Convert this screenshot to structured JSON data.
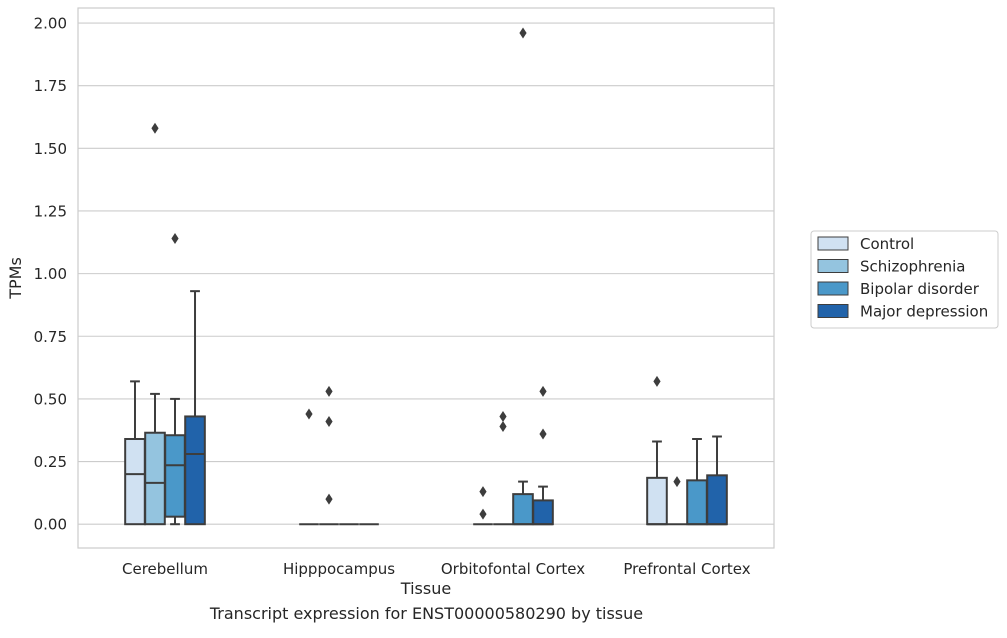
{
  "chart_data": {
    "type": "box",
    "title": "",
    "caption": "Transcript expression for ENST00000580290 by tissue",
    "xlabel": "Tissue",
    "ylabel": "TPMs",
    "categories": [
      "Cerebellum",
      "Hipppocampus",
      "Orbitofontal Cortex",
      "Prefrontal Cortex"
    ],
    "ylim": [
      -0.095,
      2.06
    ],
    "yticks": [
      "0.00",
      "0.25",
      "0.50",
      "0.75",
      "1.00",
      "1.25",
      "1.50",
      "1.75",
      "2.00"
    ],
    "grid": true,
    "legend_position": "right",
    "series": [
      {
        "name": "Control",
        "color": "#d0e1f2",
        "boxes": [
          {
            "q1": 0.0,
            "median": 0.2,
            "q3": 0.34,
            "whislo": 0.0,
            "whishi": 0.57,
            "fliers": []
          },
          {
            "q1": 0.0,
            "median": 0.0,
            "q3": 0.0,
            "whislo": 0.0,
            "whishi": 0.0,
            "fliers": [
              0.44
            ]
          },
          {
            "q1": 0.0,
            "median": 0.0,
            "q3": 0.0,
            "whislo": 0.0,
            "whishi": 0.0,
            "fliers": [
              0.04,
              0.13
            ]
          },
          {
            "q1": 0.0,
            "median": 0.0,
            "q3": 0.185,
            "whislo": 0.0,
            "whishi": 0.33,
            "fliers": [
              0.57
            ]
          }
        ]
      },
      {
        "name": "Schizophrenia",
        "color": "#94c4df",
        "boxes": [
          {
            "q1": 0.0,
            "median": 0.165,
            "q3": 0.365,
            "whislo": 0.0,
            "whishi": 0.52,
            "fliers": [
              1.58
            ]
          },
          {
            "q1": 0.0,
            "median": 0.0,
            "q3": 0.0,
            "whislo": 0.0,
            "whishi": 0.0,
            "fliers": [
              0.1,
              0.41,
              0.53
            ]
          },
          {
            "q1": 0.0,
            "median": 0.0,
            "q3": 0.0,
            "whislo": 0.0,
            "whishi": 0.0,
            "fliers": [
              0.39,
              0.43
            ]
          },
          {
            "q1": 0.0,
            "median": 0.0,
            "q3": 0.0,
            "whislo": 0.0,
            "whishi": 0.0,
            "fliers": [
              0.17
            ]
          }
        ]
      },
      {
        "name": "Bipolar disorder",
        "color": "#4a98c9",
        "boxes": [
          {
            "q1": 0.03,
            "median": 0.235,
            "q3": 0.355,
            "whislo": 0.0,
            "whishi": 0.5,
            "fliers": [
              1.14
            ]
          },
          {
            "q1": 0.0,
            "median": 0.0,
            "q3": 0.0,
            "whislo": 0.0,
            "whishi": 0.0,
            "fliers": []
          },
          {
            "q1": 0.0,
            "median": 0.0,
            "q3": 0.12,
            "whislo": 0.0,
            "whishi": 0.17,
            "fliers": [
              1.96
            ]
          },
          {
            "q1": 0.0,
            "median": 0.0,
            "q3": 0.175,
            "whislo": 0.0,
            "whishi": 0.34,
            "fliers": []
          }
        ]
      },
      {
        "name": "Major depression",
        "color": "#2163aa",
        "boxes": [
          {
            "q1": 0.0,
            "median": 0.28,
            "q3": 0.43,
            "whislo": 0.0,
            "whishi": 0.93,
            "fliers": []
          },
          {
            "q1": 0.0,
            "median": 0.0,
            "q3": 0.0,
            "whislo": 0.0,
            "whishi": 0.0,
            "fliers": []
          },
          {
            "q1": 0.0,
            "median": 0.0,
            "q3": 0.095,
            "whislo": 0.0,
            "whishi": 0.15,
            "fliers": [
              0.36,
              0.53
            ]
          },
          {
            "q1": 0.0,
            "median": 0.0,
            "q3": 0.195,
            "whislo": 0.0,
            "whishi": 0.35,
            "fliers": []
          }
        ]
      }
    ]
  }
}
